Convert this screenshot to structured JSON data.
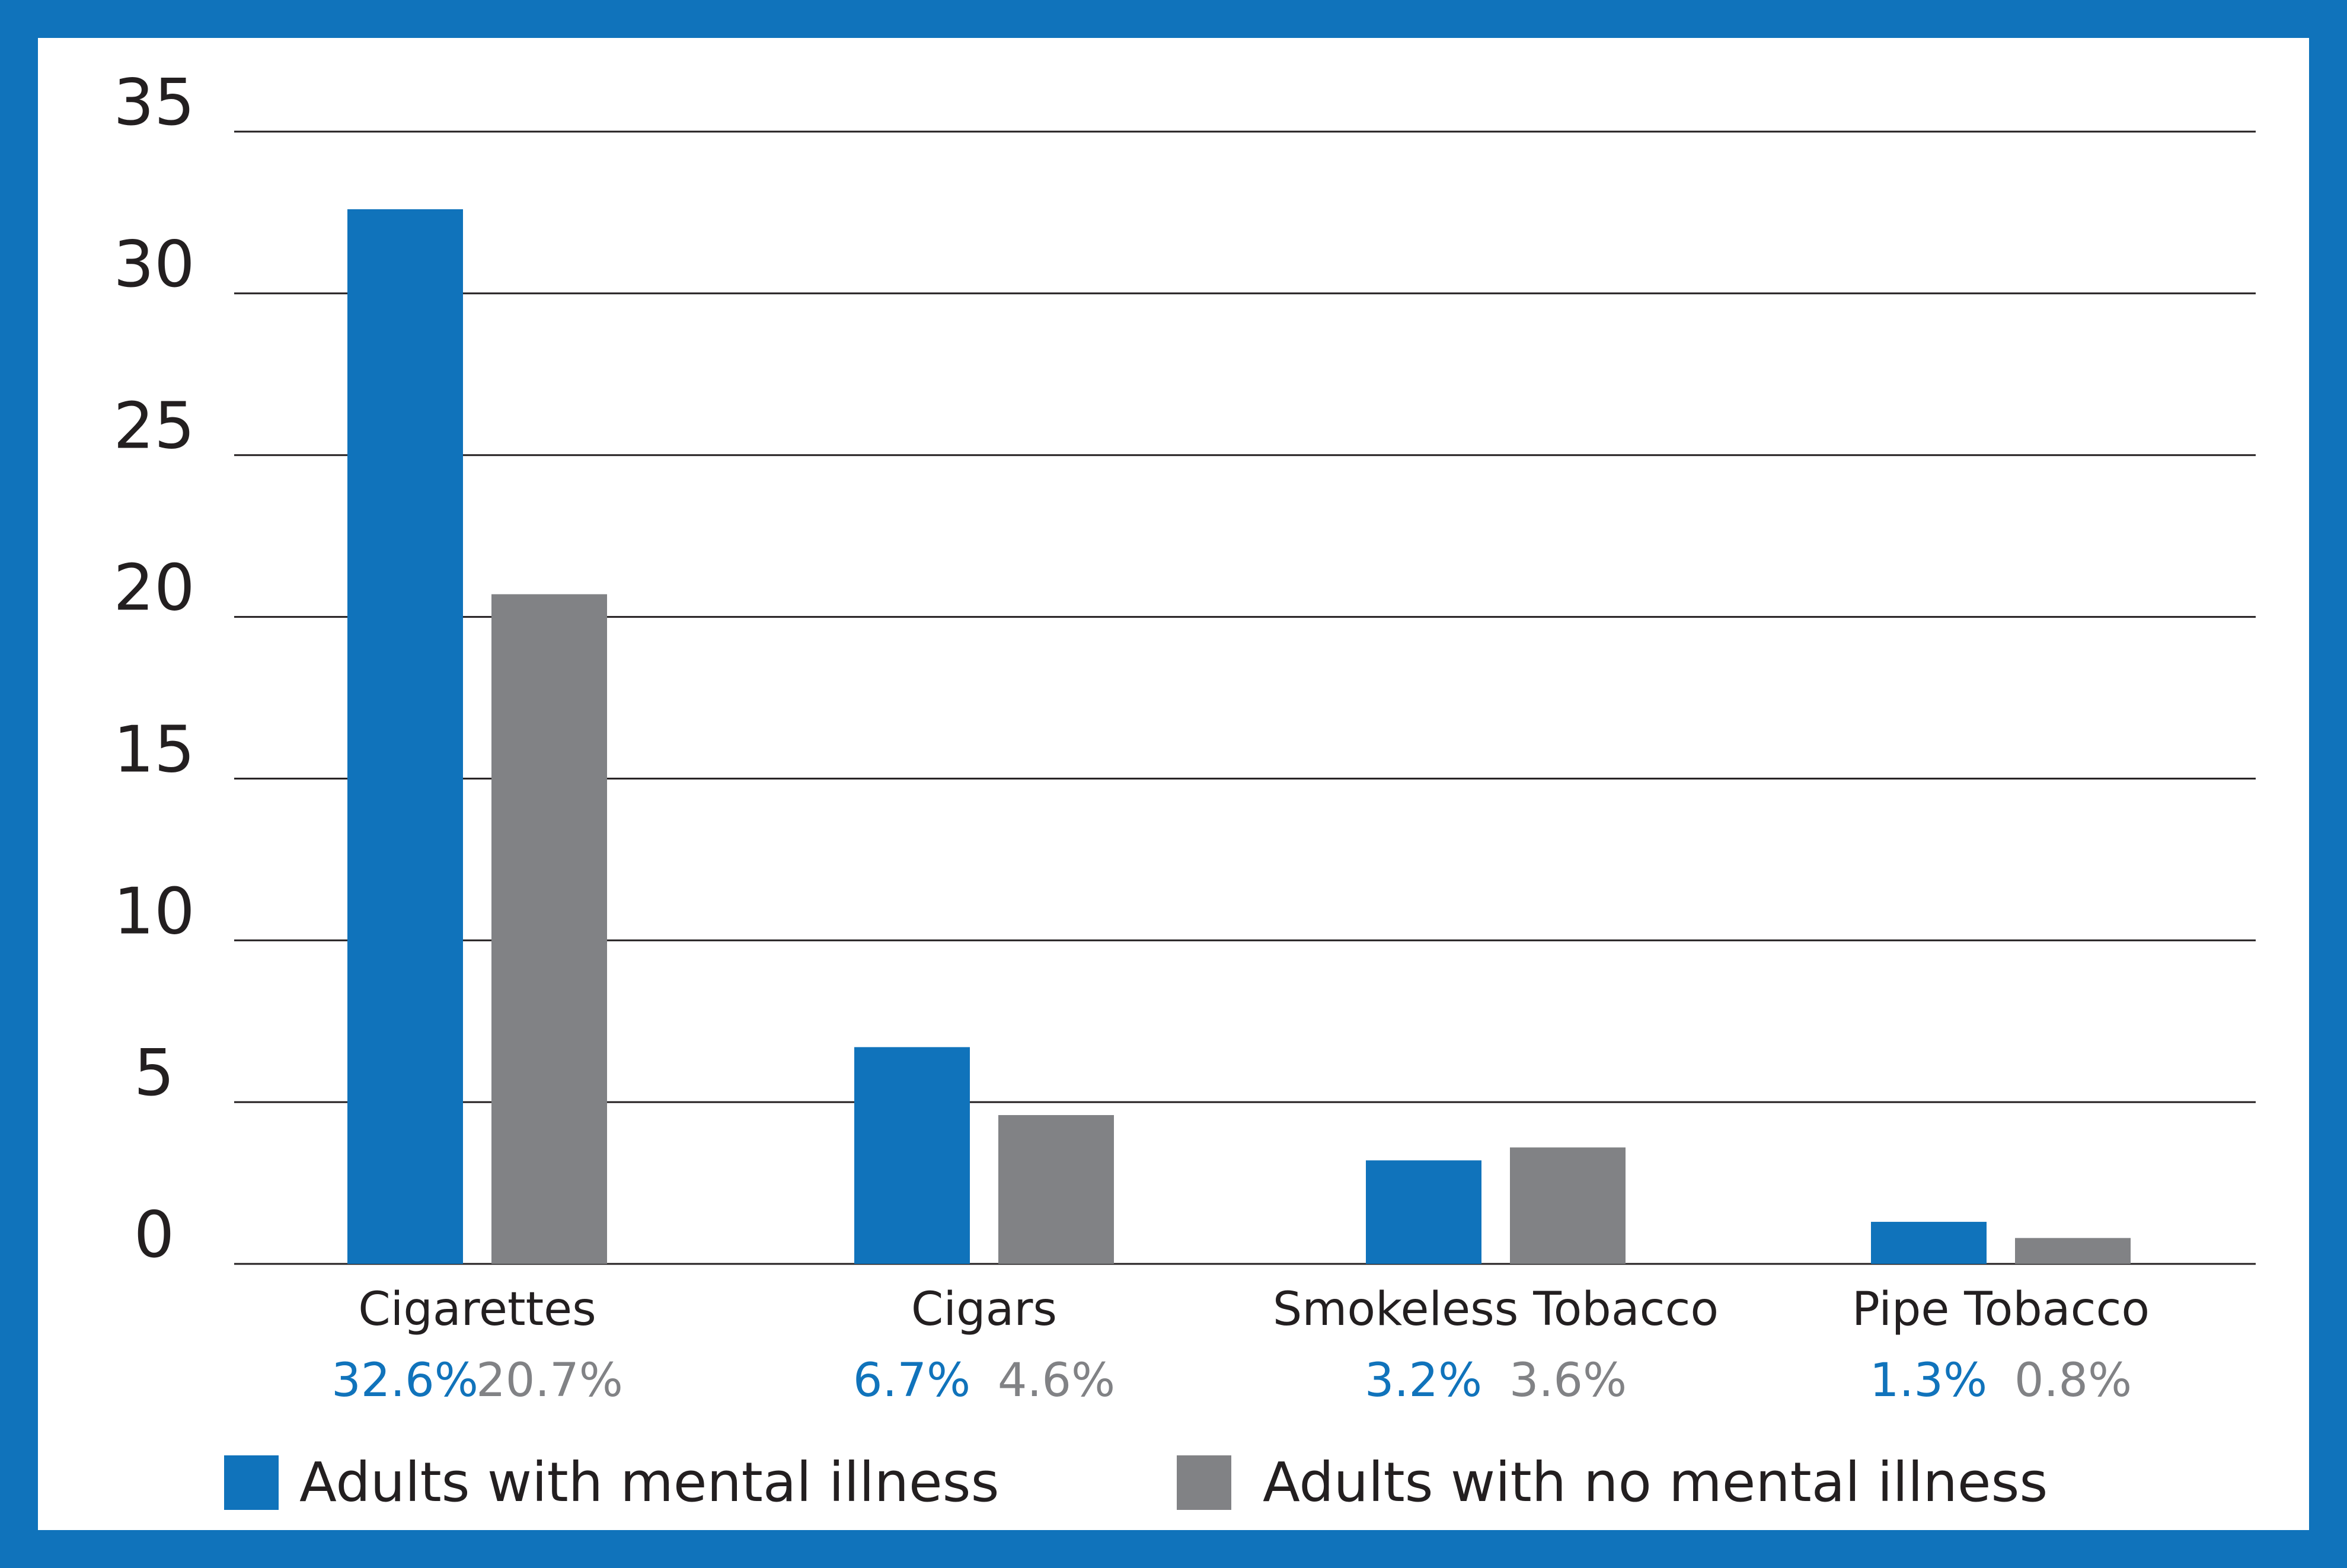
{
  "chart_data": {
    "type": "bar",
    "categories": [
      "Cigarettes",
      "Cigars",
      "Smokeless Tobacco",
      "Pipe Tobacco"
    ],
    "series": [
      {
        "name": "Adults with mental illness",
        "color": "#1073bb",
        "values": [
          32.6,
          6.7,
          3.2,
          1.3
        ],
        "labels": [
          "32.6%",
          "6.7%",
          "3.2%",
          "1.3%"
        ]
      },
      {
        "name": "Adults with no mental illness",
        "color": "#818285",
        "values": [
          20.7,
          4.6,
          3.6,
          0.8
        ],
        "labels": [
          "20.7%",
          "4.6%",
          "3.6%",
          "0.8%"
        ]
      }
    ],
    "y_ticks": [
      "0",
      "5",
      "10",
      "15",
      "20",
      "25",
      "30",
      "35"
    ],
    "ylim": [
      0,
      35
    ],
    "grid": true,
    "legend_position": "bottom",
    "title": "",
    "xlabel": "",
    "ylabel": ""
  },
  "colors": {
    "frame": "#1073bb",
    "gridline": "#231f20",
    "text": "#231f20"
  }
}
